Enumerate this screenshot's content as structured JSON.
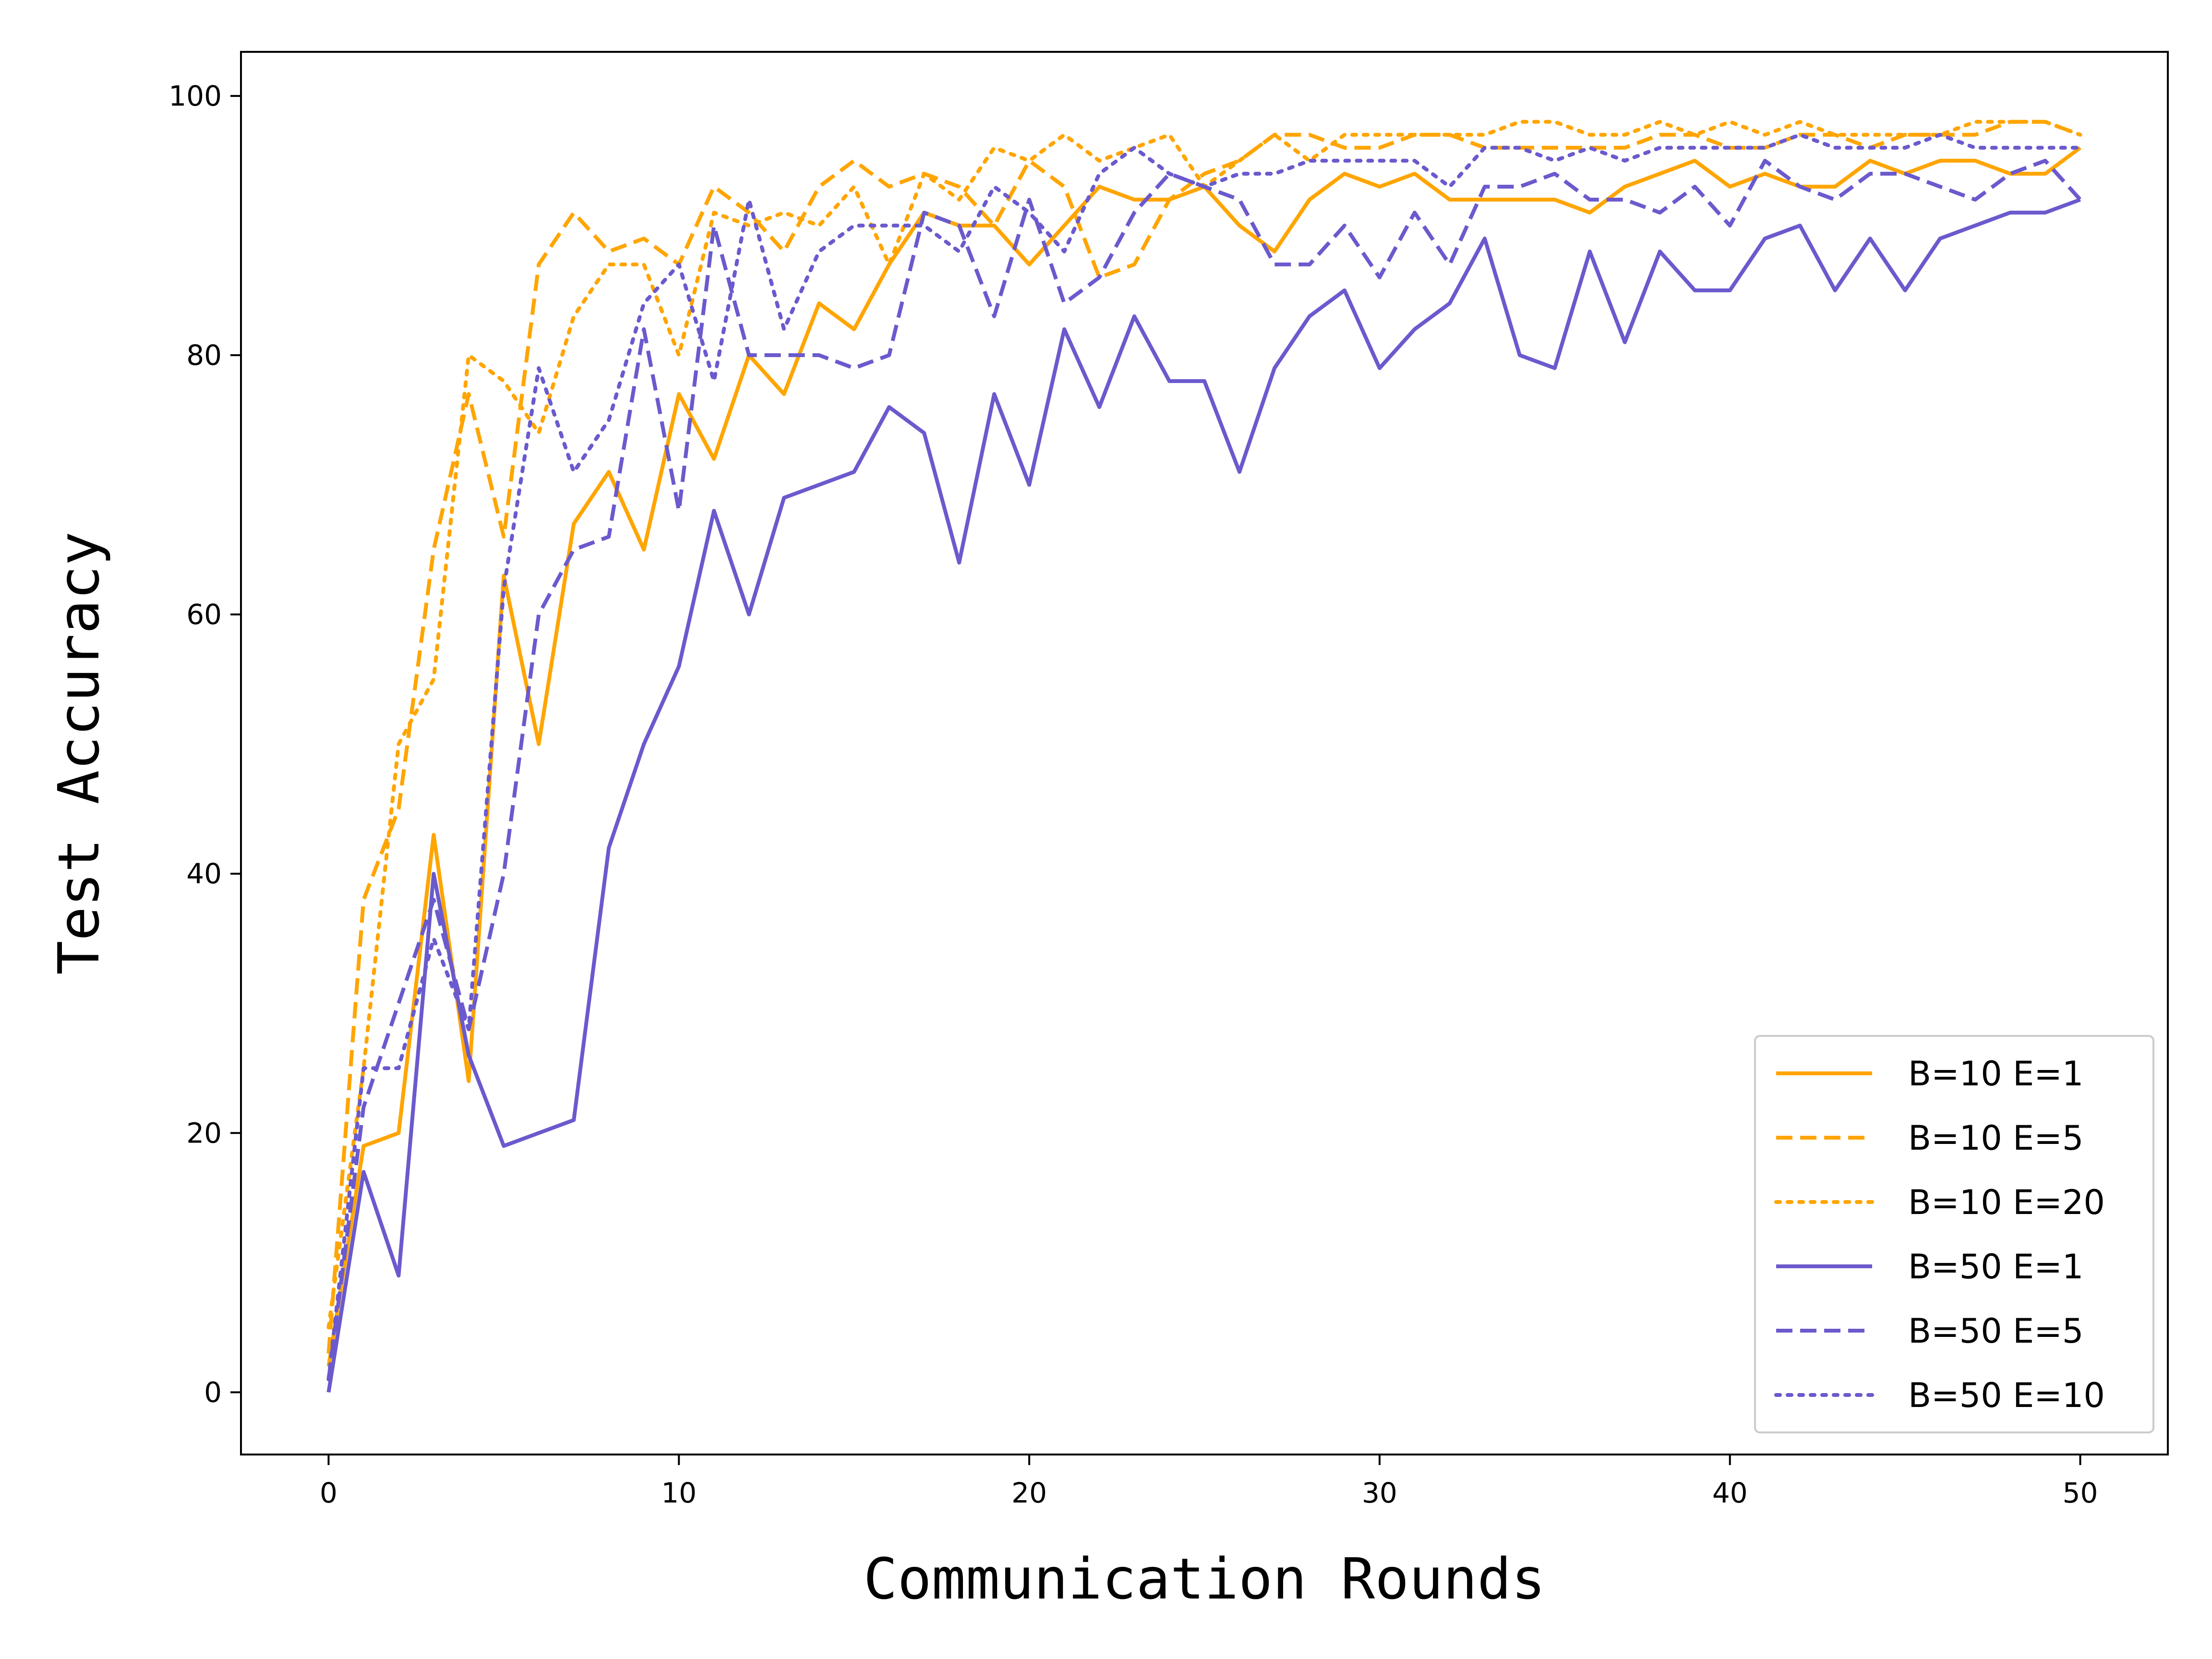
{
  "chart_data": {
    "type": "line",
    "title": "",
    "xlabel": "Communication Rounds",
    "ylabel": "Test Accuracy",
    "xlim": [
      -2.5,
      52.5
    ],
    "ylim": [
      -4.8,
      103.4
    ],
    "xticks": [
      0,
      10,
      20,
      30,
      40,
      50
    ],
    "yticks": [
      0,
      20,
      40,
      60,
      80,
      100
    ],
    "grid": false,
    "legend_position": "lower-right",
    "x": [
      0,
      1,
      2,
      3,
      4,
      5,
      6,
      7,
      8,
      9,
      10,
      11,
      12,
      13,
      14,
      15,
      16,
      17,
      18,
      19,
      20,
      21,
      22,
      23,
      24,
      25,
      26,
      27,
      28,
      29,
      30,
      31,
      32,
      33,
      34,
      35,
      36,
      37,
      38,
      39,
      40,
      41,
      42,
      43,
      44,
      45,
      46,
      47,
      48,
      49,
      50
    ],
    "series": [
      {
        "name": "B=10  E=1",
        "color": "#FFA500",
        "style": "solid",
        "values": [
          2,
          19,
          20,
          43,
          24,
          63,
          50,
          67,
          71,
          65,
          77,
          72,
          80,
          77,
          84,
          82,
          87,
          91,
          90,
          90,
          87,
          90,
          93,
          92,
          92,
          93,
          90,
          88,
          92,
          94,
          93,
          94,
          92,
          92,
          92,
          92,
          91,
          93,
          94,
          95,
          93,
          94,
          93,
          93,
          95,
          94,
          95,
          95,
          94,
          94,
          96
        ]
      },
      {
        "name": "B=10  E=5",
        "color": "#FFA500",
        "style": "dashed",
        "values": [
          3,
          38,
          45,
          65,
          77,
          66,
          87,
          91,
          88,
          89,
          87,
          93,
          91,
          88,
          93,
          95,
          93,
          94,
          93,
          90,
          95,
          93,
          86,
          87,
          92,
          94,
          95,
          97,
          97,
          96,
          96,
          97,
          97,
          96,
          96,
          96,
          96,
          96,
          97,
          97,
          96,
          96,
          97,
          97,
          96,
          97,
          97,
          97,
          98,
          98,
          97
        ]
      },
      {
        "name": "B=10  E=20",
        "color": "#FFA500",
        "style": "dotted",
        "values": [
          5,
          25,
          50,
          55,
          80,
          78,
          74,
          83,
          87,
          87,
          80,
          91,
          90,
          91,
          90,
          93,
          87,
          94,
          92,
          96,
          95,
          97,
          95,
          96,
          97,
          93,
          95,
          97,
          95,
          97,
          97,
          97,
          97,
          97,
          98,
          98,
          97,
          97,
          98,
          97,
          98,
          97,
          98,
          97,
          97,
          97,
          97,
          98,
          98,
          98,
          97
        ]
      },
      {
        "name": "B=50  E=1",
        "color": "#6A5ACD",
        "style": "solid",
        "values": [
          0,
          17,
          9,
          40,
          26,
          19,
          20,
          21,
          42,
          50,
          56,
          68,
          60,
          69,
          70,
          71,
          76,
          74,
          64,
          77,
          70,
          82,
          76,
          83,
          78,
          78,
          71,
          79,
          83,
          85,
          79,
          82,
          84,
          89,
          80,
          79,
          88,
          81,
          88,
          85,
          85,
          89,
          90,
          85,
          89,
          85,
          89,
          90,
          91,
          91,
          92
        ]
      },
      {
        "name": "B=50  E=5",
        "color": "#6A5ACD",
        "style": "dashed",
        "values": [
          1,
          22,
          30,
          38,
          28,
          40,
          60,
          65,
          66,
          82,
          68,
          90,
          80,
          80,
          80,
          79,
          80,
          91,
          90,
          83,
          92,
          84,
          86,
          91,
          94,
          93,
          92,
          87,
          87,
          90,
          86,
          91,
          87,
          93,
          93,
          94,
          92,
          92,
          91,
          93,
          90,
          95,
          93,
          92,
          94,
          94,
          93,
          92,
          94,
          95,
          92
        ]
      },
      {
        "name": "B=50  E=10",
        "color": "#6A5ACD",
        "style": "dotted",
        "values": [
          1,
          25,
          25,
          35,
          28,
          62,
          79,
          71,
          75,
          84,
          87,
          78,
          92,
          82,
          88,
          90,
          90,
          90,
          88,
          93,
          91,
          88,
          94,
          96,
          94,
          93,
          94,
          94,
          95,
          95,
          95,
          95,
          93,
          96,
          96,
          95,
          96,
          95,
          96,
          96,
          96,
          96,
          97,
          96,
          96,
          96,
          97,
          96,
          96,
          96,
          96
        ]
      }
    ]
  }
}
